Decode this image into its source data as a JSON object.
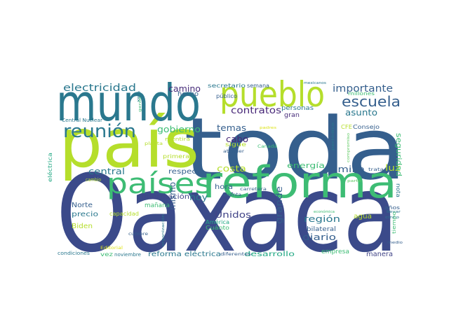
{
  "palette": {
    "navy": "#3b4a8a",
    "indigo": "#414487",
    "slate": "#355f8d",
    "teal": "#2a788e",
    "mint": "#3dbc74",
    "green": "#5ec962",
    "lime": "#b5de2b",
    "yellow": "#dde318",
    "purple": "#482878",
    "violet": "#472c7a",
    "seafoam": "#22a884"
  },
  "words": [
    "Oaxaca",
    "toda",
    "país",
    "mundo",
    "reforma",
    "pueblo",
    "países",
    "reunión",
    "escuela",
    "electricidad",
    "importante",
    "contratos",
    "camino",
    "gobierno",
    "temas",
    "cabo",
    "asunto",
    "costa",
    "energía",
    "familia",
    "luz",
    "seguridad",
    "central",
    "respecto",
    "hoy",
    "hora",
    "información",
    "mismo",
    "Unidos",
    "región",
    "grande",
    "diario",
    "agua",
    "Norte",
    "precio",
    "capacidad",
    "Biden",
    "América",
    "Cuánto",
    "bilateral",
    "mañana",
    "cambio",
    "eléctrica",
    "reforma eléctrica",
    "desarrollo",
    "empresa",
    "manera",
    "vez",
    "noviembre",
    "diferentes",
    "condiciones",
    "Central Nuclear",
    "hecho",
    "público",
    "secretario",
    "semana",
    "personas",
    "gran",
    "millones",
    "mexicanos",
    "CFE",
    "Consejo",
    "compromiso",
    "sigue",
    "atender",
    "Canadá",
    "periódico",
    "padres",
    "mentira",
    "primera",
    "planta",
    "carretera",
    "cuenta",
    "nota",
    "años",
    "llevar",
    "cinco",
    "tiempo",
    "medio",
    "económica",
    "parte",
    "trata",
    "cumbre",
    "organización",
    "Editorial",
    "Oax",
    "gente"
  ]
}
